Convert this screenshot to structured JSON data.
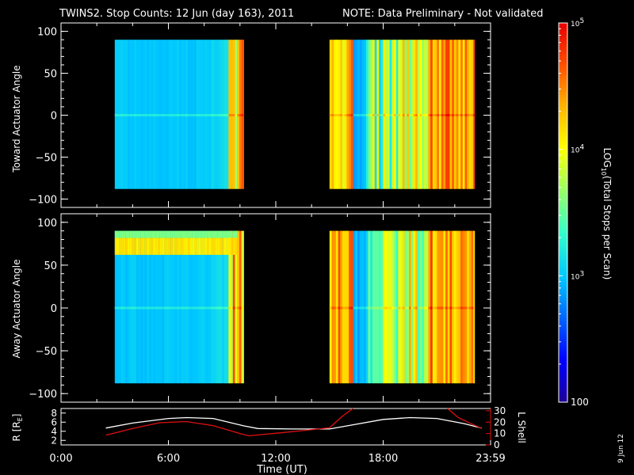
{
  "header": {
    "title": "TWINS2. Stop Counts: 12 Jun (day 163), 2011",
    "note": "NOTE: Data Preliminary - Not validated",
    "note_color": "#ff1a1a"
  },
  "side_stamp": "9 Jun 12",
  "colors": {
    "background": "#000000",
    "axes": "#ffffff",
    "trace_R": "#ffffff",
    "trace_L": "#e01010",
    "no_data": "#000000"
  },
  "chart_data": [
    {
      "type": "heatmap",
      "id": "toward",
      "ylabel": "Toward Actuator Angle",
      "ylim": [
        -110,
        110
      ],
      "yticks": [
        100,
        50,
        0,
        -50,
        -100
      ],
      "xlim_hours": [
        0,
        24
      ],
      "data_y_range": [
        -88,
        90
      ],
      "data_time_blocks_hours": [
        [
          3.0,
          10.2
        ],
        [
          15.0,
          23.1
        ]
      ]
    },
    {
      "type": "heatmap",
      "id": "away",
      "ylabel": "Away Actuator Angle",
      "ylim": [
        -110,
        110
      ],
      "yticks": [
        100,
        50,
        0,
        -50,
        -100
      ],
      "xlim_hours": [
        0,
        24
      ],
      "data_y_range": [
        -88,
        90
      ],
      "data_time_blocks_hours": [
        [
          3.0,
          10.2
        ],
        [
          15.0,
          23.1
        ]
      ]
    },
    {
      "type": "line",
      "id": "ephemeris",
      "xlabel": "Time (UT)",
      "xtick_labels": [
        "0:00",
        "6:00",
        "12:00",
        "18:00",
        "23:59"
      ],
      "xtick_hours": [
        0,
        6,
        12,
        18,
        24
      ],
      "left_axis": {
        "label": "R [Rₑ]",
        "label_main": "R [R",
        "label_sub": "E",
        "label_end": "]",
        "ylim": [
          1,
          9
        ],
        "ticks": [
          2,
          4,
          6,
          8
        ]
      },
      "right_axis": {
        "label": "L Shell",
        "ylim": [
          0,
          32
        ],
        "ticks": [
          0,
          10,
          20,
          30
        ]
      },
      "series": [
        {
          "name": "R",
          "axis": "left",
          "x": [
            2.5,
            4,
            6,
            7,
            8.5,
            10.2,
            11,
            13,
            15,
            16,
            18,
            19.5,
            21,
            22.5,
            23.5
          ],
          "y": [
            4.7,
            5.8,
            6.8,
            7.0,
            6.8,
            5.2,
            4.6,
            4.5,
            4.5,
            5.2,
            6.6,
            7.0,
            6.8,
            5.7,
            4.7
          ]
        },
        {
          "name": "L Shell",
          "axis": "right",
          "x": [
            2.5,
            4,
            5.5,
            7,
            8.5,
            10,
            10.5,
            12.5,
            15,
            15.7,
            16.3
          ],
          "y": [
            8.5,
            14.5,
            19.5,
            20.5,
            17,
            10,
            8,
            11,
            15,
            25,
            32
          ]
        },
        {
          "name": "L Shell (late)",
          "axis": "right",
          "x": [
            21.6,
            22.2,
            23.0,
            23.5
          ],
          "y": [
            32,
            24,
            18,
            14.5
          ]
        }
      ]
    },
    {
      "type": "colorbar",
      "id": "colorbar",
      "label": "LOG₁₀(Total Stops per Scan)",
      "label_main": "LOG",
      "label_sub": "10",
      "label_end": "(Total Stops per Scan)",
      "range": [
        100,
        100000
      ],
      "log": true,
      "tick_labels": [
        {
          "value": 100000,
          "base": "10",
          "exp": "5"
        },
        {
          "value": 10000,
          "base": "10",
          "exp": "4"
        },
        {
          "value": 1000,
          "base": "10",
          "exp": "3"
        },
        {
          "value": 100,
          "text": "100"
        }
      ],
      "colormap": [
        "#1e0096",
        "#0000ff",
        "#0064ff",
        "#00c8ff",
        "#37ffc8",
        "#9bff64",
        "#ffff00",
        "#ffb400",
        "#ff5000",
        "#e60000"
      ]
    }
  ]
}
